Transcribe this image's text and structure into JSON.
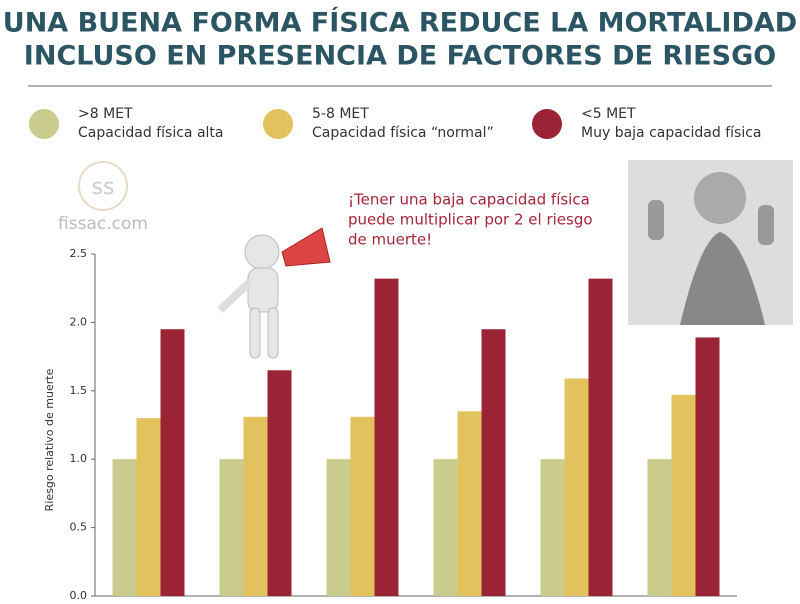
{
  "chart_data": {
    "type": "bar",
    "title": [
      "UNA BUENA FORMA FÍSICA REDUCE LA MORTALIDAD",
      "INCLUSO EN PRESENCIA DE FACTORES DE RIESGO"
    ],
    "y_label": "Riesgo relativo de muerte",
    "annotation": [
      "¡Tener una baja capacidad física",
      "puede multiplicar por 2 el riesgo",
      "de muerte!"
    ],
    "watermark": "fissac.com",
    "categories": [
      null,
      null,
      null,
      null,
      null,
      null
    ],
    "series": [
      {
        "name": ">8 MET",
        "description": "Capacidad física alta",
        "color": "#c9cc8c",
        "values": [
          1.0,
          1.0,
          1.0,
          1.0,
          1.0,
          1.0
        ]
      },
      {
        "name": "5-8 MET",
        "description": "Capacidad física “normal”",
        "color": "#e2c25c",
        "values": [
          1.3,
          1.31,
          1.31,
          1.35,
          1.59,
          1.47
        ]
      },
      {
        "name": "<5 MET",
        "description": "Muy baja capacidad física",
        "color": "#9b2336",
        "values": [
          1.95,
          1.65,
          2.32,
          1.95,
          2.32,
          1.89
        ]
      }
    ],
    "ylim": [
      0,
      2.5
    ],
    "yticks": [
      {
        "value": 0,
        "label": "0.0"
      },
      0.5,
      {
        "value": 1,
        "label": "1.0"
      },
      1.5,
      {
        "value": 2,
        "label": "2.0"
      },
      2.5
    ],
    "grid": false
  }
}
